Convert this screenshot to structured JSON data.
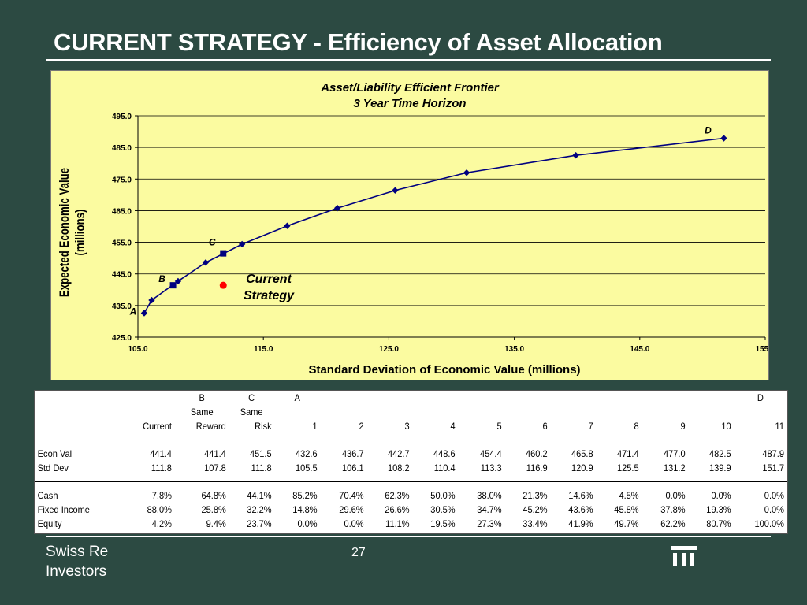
{
  "slide": {
    "title": "CURRENT STRATEGY - Efficiency of Asset Allocation",
    "footer_line1": "Swiss Re",
    "footer_line2": "Investors",
    "page_number": "27",
    "background_color": "#2c4a42"
  },
  "chart_data": {
    "type": "scatter",
    "title_line1": "Asset/Liability Efficient Frontier",
    "title_line2": "3 Year Time Horizon",
    "xlabel": "Standard Deviation of Economic Value (millions)",
    "ylabel_line1": "Expected Economic Value",
    "ylabel_line2": "(millions)",
    "xlim": [
      105,
      155
    ],
    "ylim": [
      425,
      495
    ],
    "x_ticks": [
      "105.0",
      "115.0",
      "125.0",
      "135.0",
      "145.0",
      "155.0"
    ],
    "y_ticks": [
      "425.0",
      "435.0",
      "445.0",
      "455.0",
      "465.0",
      "475.0",
      "485.0",
      "495.0"
    ],
    "grid": "horizontal",
    "series": [
      {
        "x": [
          105.5,
          106.1,
          108.2,
          110.4,
          113.3,
          116.9,
          120.9,
          125.5,
          131.2,
          139.9,
          151.7
        ],
        "y": [
          432.6,
          436.7,
          442.7,
          448.6,
          454.4,
          460.2,
          465.8,
          471.4,
          477.0,
          482.5,
          487.9
        ],
        "color": "#000080",
        "marker": "diamond"
      },
      {
        "x": [
          107.8,
          111.8
        ],
        "y": [
          441.4,
          451.5
        ],
        "color": "#000080",
        "marker": "square"
      },
      {
        "x": [
          111.8
        ],
        "y": [
          441.4
        ],
        "color": "#ff0000",
        "marker": "circle"
      }
    ],
    "annotations": [
      {
        "text": "A",
        "x": 105.5,
        "y": 432.6
      },
      {
        "text": "B",
        "x": 107.8,
        "y": 441.4
      },
      {
        "text": "C",
        "x": 111.8,
        "y": 451.5
      },
      {
        "text": "D",
        "x": 151.7,
        "y": 487.9
      }
    ],
    "current_label_line1": "Current",
    "current_label_line2": "Strategy"
  },
  "table": {
    "header_top": [
      "",
      "",
      "B",
      "C",
      "A",
      "",
      "",
      "",
      "",
      "",
      "",
      "",
      "",
      "",
      "D"
    ],
    "header_mid": [
      "",
      "",
      "Same",
      "Same",
      "",
      "",
      "",
      "",
      "",
      "",
      "",
      "",
      "",
      "",
      ""
    ],
    "header_bottom": [
      "",
      "Current",
      "Reward",
      "Risk",
      "1",
      "2",
      "3",
      "4",
      "5",
      "6",
      "7",
      "8",
      "9",
      "10",
      "11"
    ],
    "rows": [
      [
        "Econ Val",
        "441.4",
        "441.4",
        "451.5",
        "432.6",
        "436.7",
        "442.7",
        "448.6",
        "454.4",
        "460.2",
        "465.8",
        "471.4",
        "477.0",
        "482.5",
        "487.9"
      ],
      [
        "Std Dev",
        "111.8",
        "107.8",
        "111.8",
        "105.5",
        "106.1",
        "108.2",
        "110.4",
        "113.3",
        "116.9",
        "120.9",
        "125.5",
        "131.2",
        "139.9",
        "151.7"
      ],
      [
        "Cash",
        "7.8%",
        "64.8%",
        "44.1%",
        "85.2%",
        "70.4%",
        "62.3%",
        "50.0%",
        "38.0%",
        "21.3%",
        "14.6%",
        "4.5%",
        "0.0%",
        "0.0%",
        "0.0%"
      ],
      [
        "Fixed Income",
        "88.0%",
        "25.8%",
        "32.2%",
        "14.8%",
        "29.6%",
        "26.6%",
        "30.5%",
        "34.7%",
        "45.2%",
        "43.6%",
        "45.8%",
        "37.8%",
        "19.3%",
        "0.0%"
      ],
      [
        "Equity",
        "4.2%",
        "9.4%",
        "23.7%",
        "0.0%",
        "0.0%",
        "11.1%",
        "19.5%",
        "27.3%",
        "33.4%",
        "41.9%",
        "49.7%",
        "62.2%",
        "80.7%",
        "100.0%"
      ]
    ]
  }
}
